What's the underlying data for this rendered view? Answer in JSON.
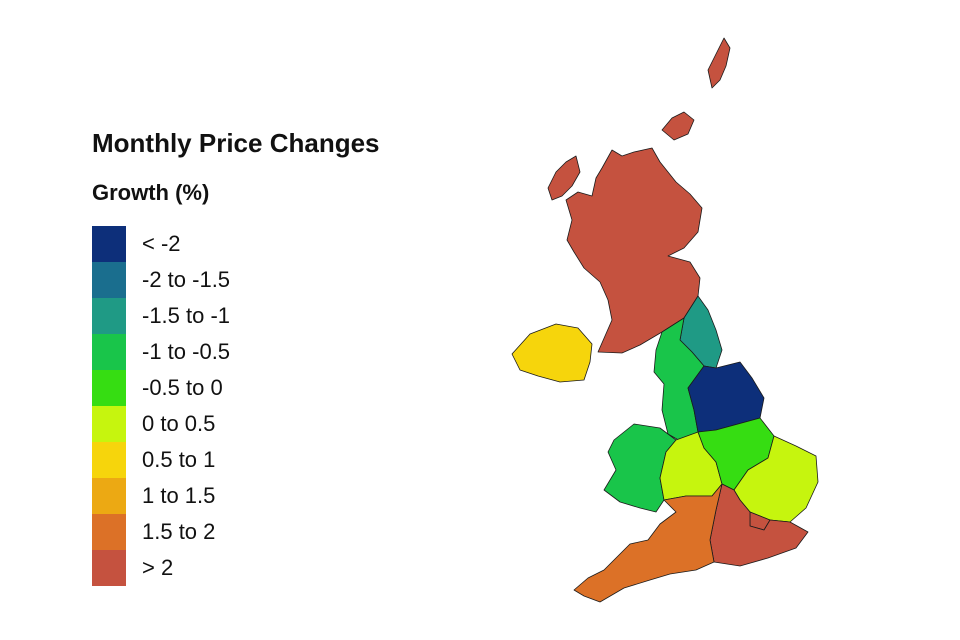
{
  "title": "Monthly Price Changes",
  "legend": {
    "title": "Growth (%)",
    "items": [
      {
        "label": "< -2",
        "color": "#0d2f7a"
      },
      {
        "label": "-2 to -1.5",
        "color": "#1a6e8e"
      },
      {
        "label": "-1.5 to -1",
        "color": "#1f9a85"
      },
      {
        "label": "-1 to -0.5",
        "color": "#19c54a"
      },
      {
        "label": "-0.5 to 0",
        "color": "#36dd12"
      },
      {
        "label": "0 to 0.5",
        "color": "#c6f50e"
      },
      {
        "label": "0.5 to 1",
        "color": "#f6d50c"
      },
      {
        "label": "1 to 1.5",
        "color": "#eca913"
      },
      {
        "label": "1.5 to 2",
        "color": "#dc7127"
      },
      {
        "label": "> 2",
        "color": "#c5523f"
      }
    ]
  },
  "regions": [
    {
      "name": "Scotland",
      "band": "> 2"
    },
    {
      "name": "North East",
      "band": "-1.5 to -1"
    },
    {
      "name": "North West",
      "band": "-1 to -0.5"
    },
    {
      "name": "Yorkshire and The Humber",
      "band": "< -2"
    },
    {
      "name": "Northern Ireland",
      "band": "0.5 to 1"
    },
    {
      "name": "Wales",
      "band": "-1 to -0.5"
    },
    {
      "name": "West Midlands",
      "band": "0 to 0.5"
    },
    {
      "name": "East Midlands",
      "band": "-0.5 to 0"
    },
    {
      "name": "East of England",
      "band": "0 to 0.5"
    },
    {
      "name": "London",
      "band": "> 2"
    },
    {
      "name": "South East",
      "band": "> 2"
    },
    {
      "name": "South West",
      "band": "1.5 to 2"
    }
  ]
}
